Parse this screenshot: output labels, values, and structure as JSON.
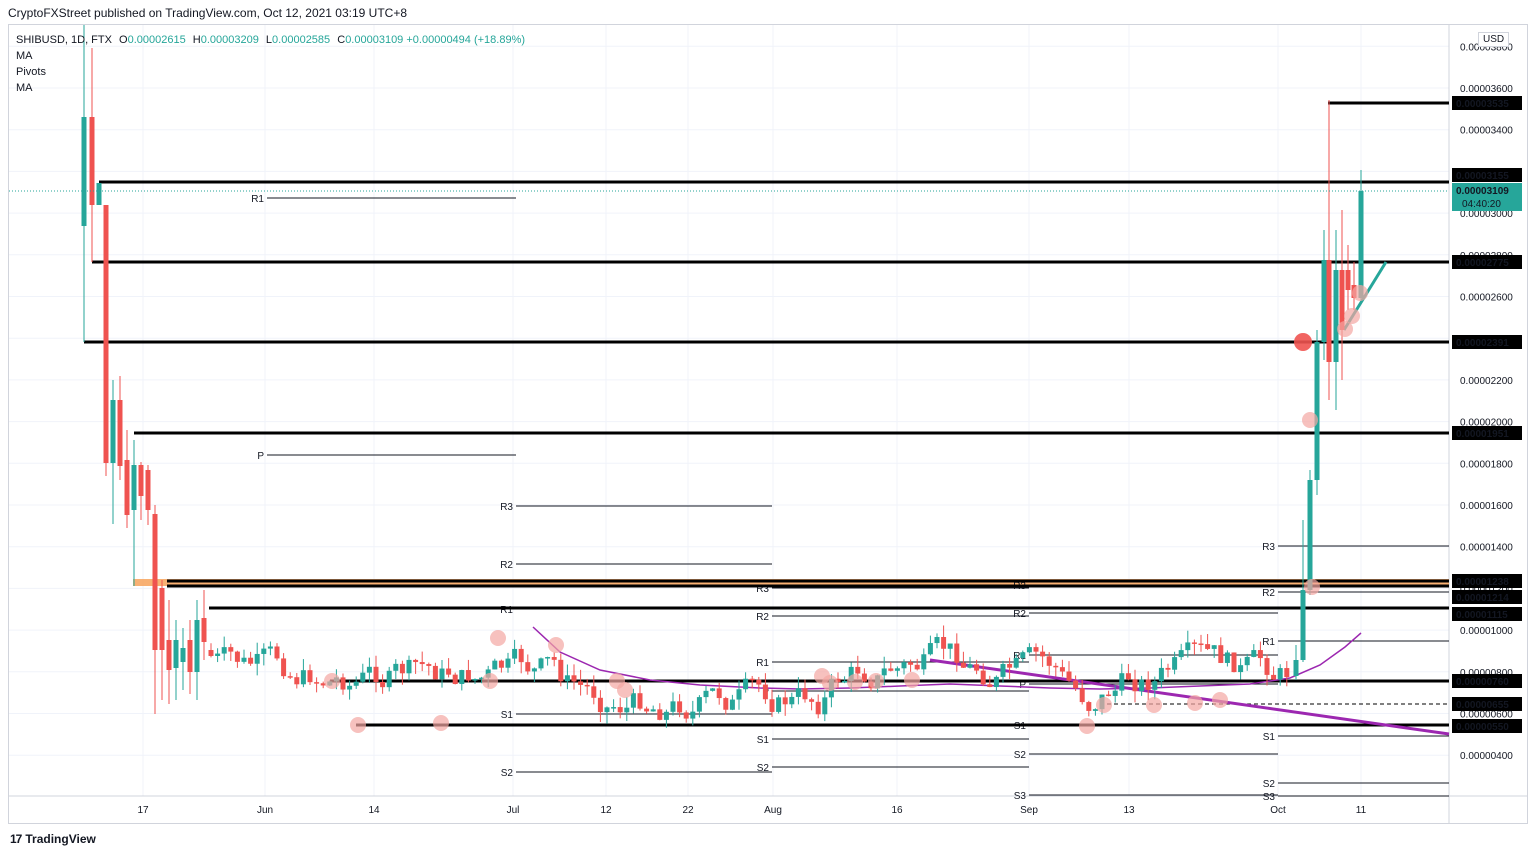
{
  "header": {
    "published": "CryptoFXStreet published on TradingView.com, Oct 12, 2021 03:19 UTC+8",
    "symbol": "SHIBUSD, 1D, FTX",
    "open_label": "O",
    "open": "0.00002615",
    "high_label": "H",
    "high": "0.00003209",
    "low_label": "L",
    "low": "0.00002585",
    "close_label": "C",
    "close": "0.00003109",
    "change": "+0.00000494 (+18.89%)",
    "indicators": [
      "MA",
      "Pivots",
      "MA"
    ]
  },
  "currency_button": "USD",
  "footer": {
    "brand": "TradingView",
    "logo": "17"
  },
  "colors": {
    "up": "#26a69a",
    "down": "#ef5350",
    "ma": "#9c27b0",
    "trend": "#9c27b0",
    "trend_up": "#26a69a",
    "marker": "#f4a6a3",
    "orange_zone": "#f7a35c"
  },
  "chart_data": {
    "type": "candlestick",
    "ylim": [
      2.8e-06,
      4e-05
    ],
    "x_ticks": [
      "17",
      "Jun",
      "14",
      "Jul",
      "12",
      "22",
      "Aug",
      "16",
      "Sep",
      "13",
      "Oct",
      "11"
    ],
    "y_ticks": [
      "0.00000400",
      "0.00000600",
      "0.00000800",
      "0.00001000",
      "0.00001200",
      "0.00001400",
      "0.00001600",
      "0.00001800",
      "0.00002000",
      "0.00002200",
      "0.00002400",
      "0.00002600",
      "0.00002800",
      "0.00003000",
      "0.00003200",
      "0.00003400",
      "0.00003600",
      "0.00003800"
    ],
    "level_labels": [
      "0.00003535",
      "0.00003155",
      "0.00002775",
      "0.00002391",
      "0.00001951",
      "0.00001238",
      "0.00001214",
      "0.00001115",
      "0.00000760",
      "0.00000655",
      "0.00000550"
    ],
    "last_price": "0.00003109",
    "countdown": "04:40:20",
    "pivot_labels": [
      "R1",
      "P",
      "R3",
      "R2",
      "R1",
      "S1",
      "S2",
      "R3",
      "R2",
      "R1",
      "P",
      "S1",
      "S2",
      "R3",
      "R2",
      "R1",
      "P",
      "S1",
      "S2",
      "S3",
      "R3",
      "R2",
      "R1",
      "S1",
      "S2",
      "S3"
    ]
  }
}
